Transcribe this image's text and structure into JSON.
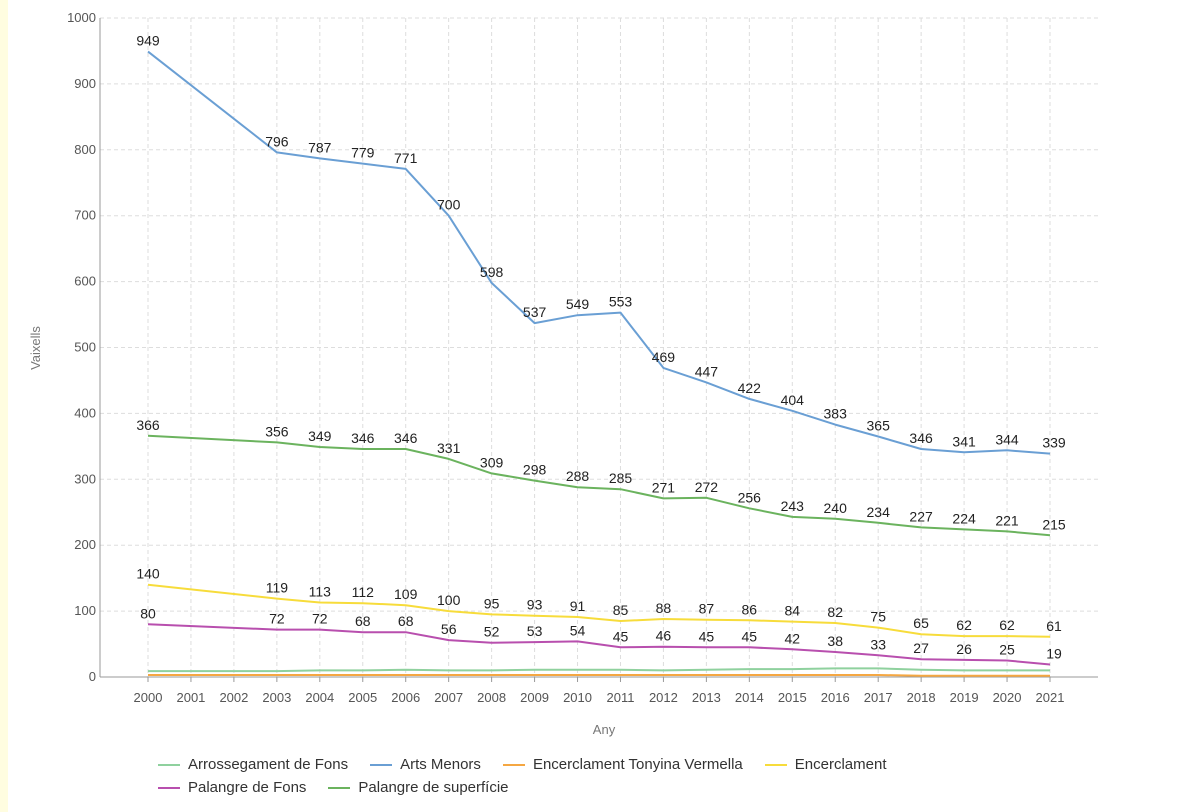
{
  "chart_data": {
    "type": "line",
    "xlabel": "Any",
    "ylabel": "Vaixells",
    "ylim": [
      0,
      1000
    ],
    "yticks": [
      0,
      100,
      200,
      300,
      400,
      500,
      600,
      700,
      800,
      900,
      1000
    ],
    "x": [
      2000,
      2001,
      2002,
      2003,
      2004,
      2005,
      2006,
      2007,
      2008,
      2009,
      2010,
      2011,
      2012,
      2013,
      2014,
      2015,
      2016,
      2017,
      2018,
      2019,
      2020,
      2021
    ],
    "grid": true,
    "legend_position": "bottom",
    "series": [
      {
        "name": "Arrossegament de Fons",
        "color": "#8fd19e",
        "labeled": false,
        "values": [
          9,
          9,
          9,
          9,
          10,
          10,
          11,
          10,
          10,
          11,
          11,
          11,
          10,
          11,
          12,
          12,
          13,
          13,
          11,
          10,
          10,
          10
        ]
      },
      {
        "name": "Arts Menors",
        "color": "#6a9fd4",
        "labeled": true,
        "values": [
          949,
          null,
          null,
          796,
          787,
          779,
          771,
          700,
          598,
          537,
          549,
          553,
          469,
          447,
          422,
          404,
          383,
          365,
          346,
          341,
          344,
          339
        ]
      },
      {
        "name": "Encerclament Tonyina Vermella",
        "color": "#f5a742",
        "labeled": false,
        "values": [
          3,
          3,
          3,
          3,
          3,
          3,
          3,
          3,
          3,
          3,
          3,
          3,
          3,
          3,
          3,
          3,
          3,
          3,
          2,
          2,
          2,
          2
        ]
      },
      {
        "name": "Encerclament",
        "color": "#f7dc3b",
        "labeled": true,
        "values": [
          140,
          null,
          null,
          119,
          113,
          112,
          109,
          100,
          95,
          93,
          91,
          85,
          88,
          87,
          86,
          84,
          82,
          75,
          65,
          62,
          62,
          61
        ]
      },
      {
        "name": "Palangre de Fons",
        "color": "#b84fae",
        "labeled": true,
        "values": [
          80,
          null,
          null,
          72,
          72,
          68,
          68,
          56,
          52,
          53,
          54,
          45,
          46,
          45,
          45,
          42,
          38,
          33,
          27,
          26,
          25,
          19
        ]
      },
      {
        "name": "Palangre de superfície",
        "color": "#6bb35e",
        "labeled": true,
        "values": [
          366,
          null,
          null,
          356,
          349,
          346,
          346,
          331,
          309,
          298,
          288,
          285,
          271,
          272,
          256,
          243,
          240,
          234,
          227,
          224,
          221,
          215
        ]
      }
    ]
  }
}
